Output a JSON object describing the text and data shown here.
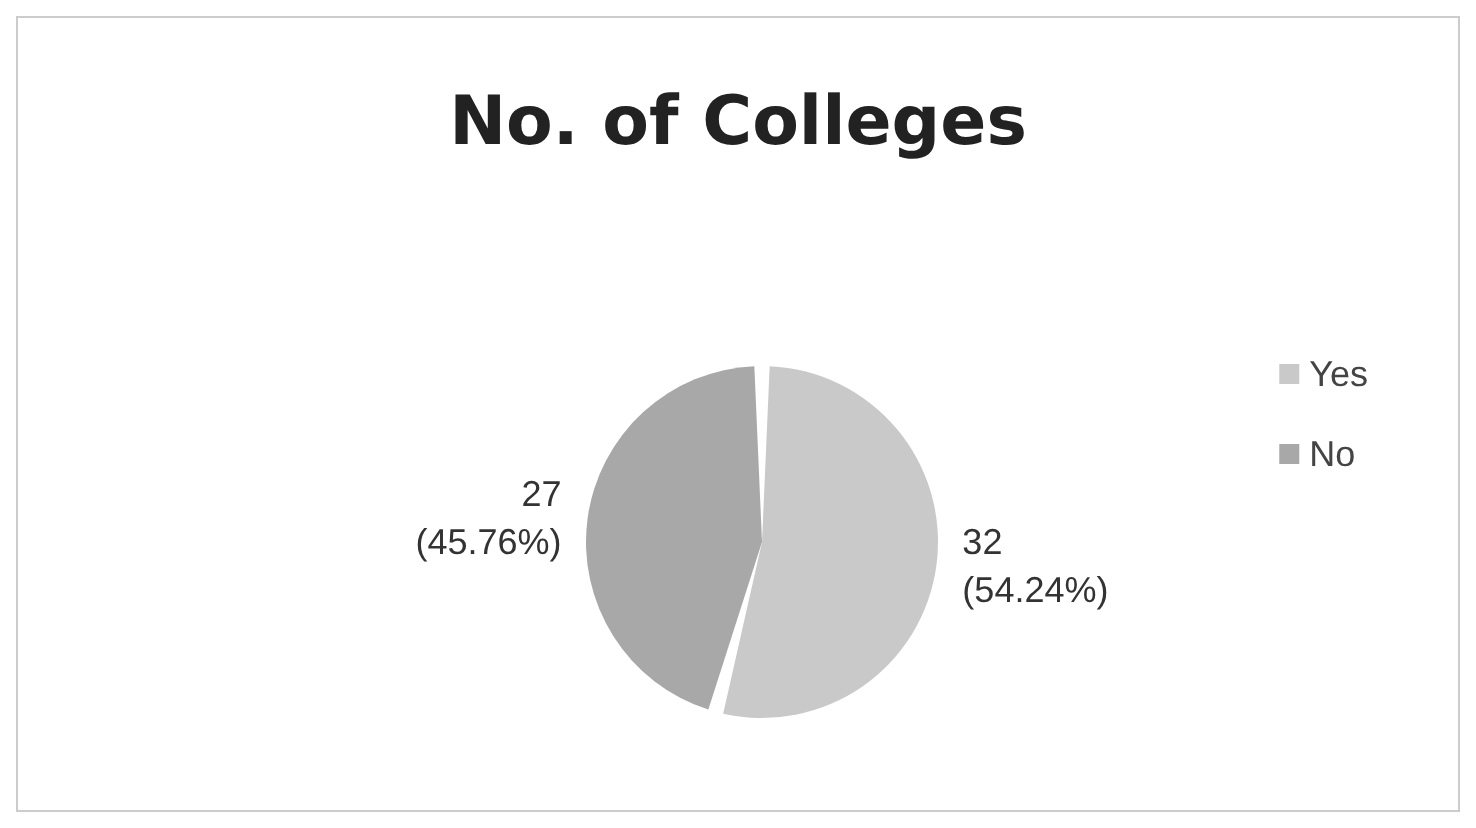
{
  "chart_data": {
    "type": "pie",
    "title": "No. of Colleges",
    "categories": [
      "Yes",
      "No"
    ],
    "values": [
      32,
      27
    ],
    "colors": [
      "#c9c9c9",
      "#a8a8a8"
    ],
    "value_labels": [
      "32\n(54.24%)",
      "27\n(45.76%)"
    ],
    "legend": "right"
  }
}
